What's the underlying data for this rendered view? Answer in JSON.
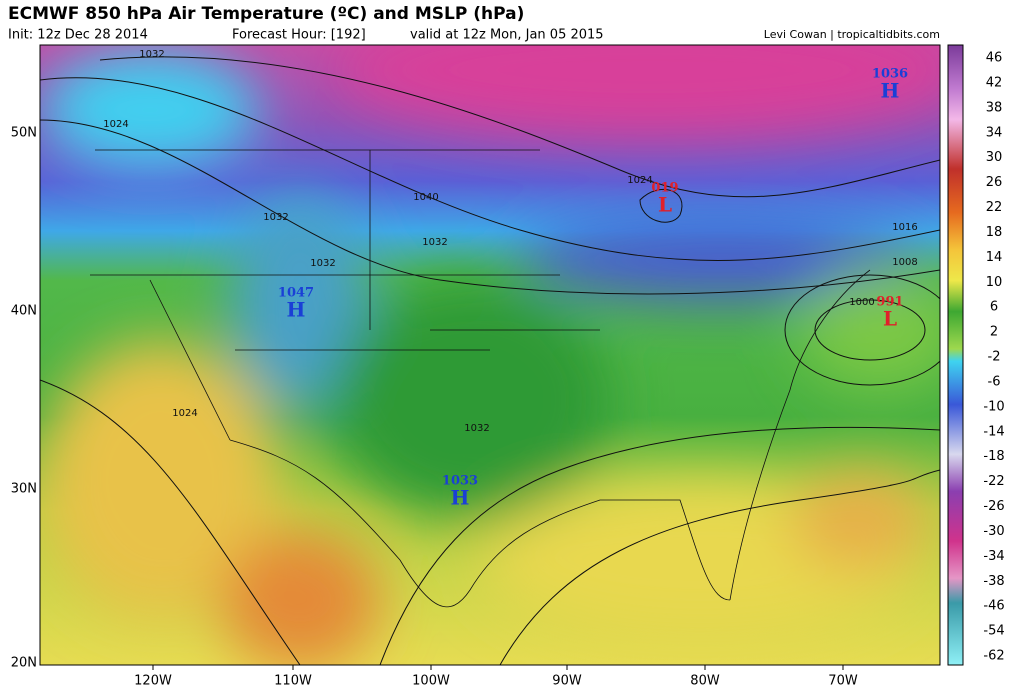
{
  "header": {
    "title": "ECMWF 850 hPa Air Temperature (ºC) and MSLP (hPa)",
    "init": "Init: 12z Dec 28 2014",
    "forecast_hour": "Forecast Hour: [192]",
    "valid": "valid at 12z Mon, Jan 05 2015",
    "credit": "Levi Cowan | tropicaltidbits.com"
  },
  "map": {
    "longitudes": [
      "120W",
      "110W",
      "100W",
      "90W",
      "80W",
      "70W"
    ],
    "latitudes": [
      "50N",
      "40N",
      "30N",
      "20N"
    ],
    "pressure_centers": [
      {
        "letter": "H",
        "value": "1036"
      },
      {
        "letter": "L",
        "value": "019"
      },
      {
        "letter": "H",
        "value": "1047"
      },
      {
        "letter": "L",
        "value": "991"
      },
      {
        "letter": "H",
        "value": "1033"
      }
    ],
    "isobar_labels": [
      "1032",
      "1024",
      "1040",
      "1032",
      "1024",
      "1016",
      "1008",
      "1000",
      "1032",
      "1032",
      "1024",
      "1032"
    ]
  },
  "colorbar": {
    "ticks": [
      46,
      42,
      38,
      34,
      30,
      26,
      22,
      18,
      14,
      10,
      6,
      2,
      -2,
      -6,
      -10,
      -14,
      -18,
      -22,
      -26,
      -30,
      -34,
      -38,
      -46,
      -54,
      -62
    ]
  }
}
